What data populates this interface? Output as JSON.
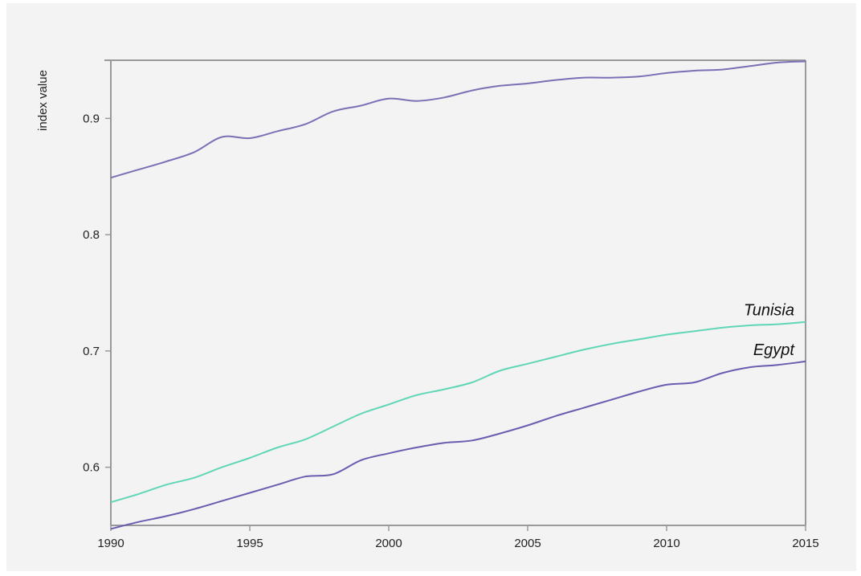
{
  "chart_data": {
    "type": "line",
    "title": "",
    "xlabel": "",
    "ylabel": "index value",
    "xlim": [
      1990,
      2015
    ],
    "ylim": [
      0.55,
      0.95
    ],
    "x_ticks": [
      1990,
      1995,
      2000,
      2005,
      2010,
      2015
    ],
    "y_ticks": [
      0.6,
      0.7,
      0.8,
      0.9
    ],
    "x_tick_labels": [
      "1990",
      "1995",
      "2000",
      "2005",
      "2010",
      "2015"
    ],
    "y_tick_labels": [
      "0.6",
      "0.7",
      "0.8",
      "0.9"
    ],
    "grid": false,
    "legend": "none",
    "x": [
      1990,
      1991,
      1992,
      1993,
      1994,
      1995,
      1996,
      1997,
      1998,
      1999,
      2000,
      2001,
      2002,
      2003,
      2004,
      2005,
      2006,
      2007,
      2008,
      2009,
      2010,
      2011,
      2012,
      2013,
      2014,
      2015
    ],
    "series": [
      {
        "name": "",
        "color": "#7b6fb5",
        "values": [
          0.849,
          0.856,
          0.863,
          0.871,
          0.884,
          0.883,
          0.889,
          0.895,
          0.906,
          0.911,
          0.917,
          0.915,
          0.918,
          0.924,
          0.928,
          0.93,
          0.933,
          0.935,
          0.935,
          0.936,
          0.939,
          0.941,
          0.942,
          0.945,
          0.948,
          0.949
        ]
      },
      {
        "name": "Tunisia",
        "color": "#5fd6b6",
        "values": [
          0.57,
          0.577,
          0.585,
          0.591,
          0.6,
          0.608,
          0.617,
          0.624,
          0.635,
          0.646,
          0.654,
          0.662,
          0.667,
          0.673,
          0.683,
          0.689,
          0.695,
          0.701,
          0.706,
          0.71,
          0.714,
          0.717,
          0.72,
          0.722,
          0.723,
          0.725
        ]
      },
      {
        "name": "Egypt",
        "color": "#6a5cb0",
        "values": [
          0.547,
          0.553,
          0.558,
          0.564,
          0.571,
          0.578,
          0.585,
          0.592,
          0.594,
          0.606,
          0.612,
          0.617,
          0.621,
          0.623,
          0.629,
          0.636,
          0.644,
          0.651,
          0.658,
          0.665,
          0.671,
          0.673,
          0.681,
          0.686,
          0.688,
          0.691
        ]
      }
    ]
  }
}
